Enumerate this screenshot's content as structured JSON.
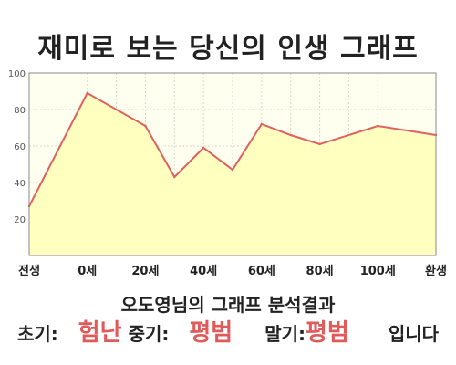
{
  "header": {
    "title": "재미로 보는 당신의 인생 그래프"
  },
  "chart_data": {
    "type": "area",
    "title": "재미로 보는 당신의 인생 그래프",
    "x_ticks": [
      "전생",
      "0세",
      "20세",
      "40세",
      "60세",
      "80세",
      "100세",
      "환생"
    ],
    "y_ticks": [
      20,
      40,
      60,
      80,
      100
    ],
    "ylim": [
      0,
      100
    ],
    "x_range": [
      "전생",
      "환생"
    ],
    "series": [
      {
        "values": [
          {
            "x": "전생",
            "y": 27
          },
          {
            "x": "0세",
            "y": 89
          },
          {
            "x": "20세",
            "y": 71
          },
          {
            "x": "30세",
            "y": 43
          },
          {
            "x": "40세",
            "y": 59
          },
          {
            "x": "50세",
            "y": 47
          },
          {
            "x": "60세",
            "y": 72
          },
          {
            "x": "70세",
            "y": 66
          },
          {
            "x": "80세",
            "y": 61
          },
          {
            "x": "100세",
            "y": 71
          },
          {
            "x": "환생",
            "y": 66
          }
        ]
      }
    ],
    "grid": true,
    "colors": {
      "fill": "#ffffc0",
      "line": "#e06060",
      "plot_bg": "#fffff0",
      "grid": "#d8d8c8"
    }
  },
  "summary": {
    "title": "오도영님의 그래프 분석결과",
    "early_label": "초기:",
    "early_value": "험난",
    "middle_label": "중기:",
    "middle_value": "평범",
    "late_label": "말기:",
    "late_value": "평범",
    "ending": "입니다"
  }
}
